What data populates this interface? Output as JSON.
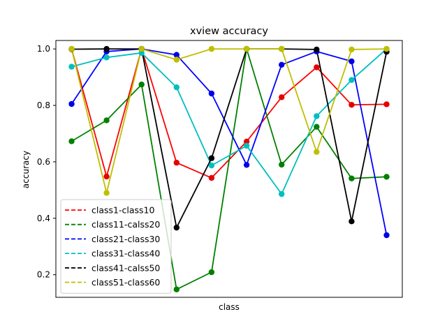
{
  "chart_data": {
    "type": "line",
    "title": "xview accuracy",
    "xlabel": "class",
    "ylabel": "accuracy",
    "x": [
      1,
      2,
      3,
      4,
      5,
      6,
      7,
      8,
      9,
      10
    ],
    "xlim": [
      0.55,
      10.45
    ],
    "ylim": [
      0.12,
      1.03
    ],
    "yticks": [
      0.2,
      0.4,
      0.6,
      0.8,
      1.0
    ],
    "ytick_labels": [
      "0.2",
      "0.4",
      "0.6",
      "0.8",
      "1.0"
    ],
    "grid": false,
    "legend_position": "lower-left",
    "legend_style": "dashed",
    "series": [
      {
        "name": "class1-class10",
        "color": "#ff0000",
        "marker_color": "#e60000",
        "values": [
          1.0,
          0.548,
          1.0,
          0.597,
          0.543,
          0.672,
          0.829,
          0.935,
          0.802,
          0.804
        ]
      },
      {
        "name": "class11-calss20",
        "color": "#008000",
        "marker_color": "#008000",
        "values": [
          0.673,
          0.747,
          0.874,
          0.148,
          0.209,
          1.0,
          0.59,
          0.724,
          0.541,
          0.547
        ]
      },
      {
        "name": "class21-class30",
        "color": "#0000ff",
        "marker_color": "#0000e6",
        "values": [
          0.805,
          0.991,
          1.0,
          0.979,
          0.842,
          0.589,
          0.944,
          0.991,
          0.956,
          0.34
        ]
      },
      {
        "name": "class31-class40",
        "color": "#00bfbf",
        "marker_color": "#00bfbf",
        "values": [
          0.937,
          0.97,
          0.986,
          0.864,
          0.587,
          0.657,
          0.486,
          0.762,
          0.89,
          1.0
        ]
      },
      {
        "name": "class41-calss50",
        "color": "#000000",
        "marker_color": "#000000",
        "values": [
          0.999,
          1.0,
          1.0,
          0.367,
          0.613,
          1.0,
          1.0,
          0.998,
          0.389,
          0.99
        ]
      },
      {
        "name": "class51-class60",
        "color": "#bfbf00",
        "marker_color": "#bfbf00",
        "values": [
          1.0,
          0.49,
          1.0,
          0.962,
          1.0,
          1.0,
          1.0,
          0.635,
          0.998,
          1.0
        ]
      }
    ]
  }
}
